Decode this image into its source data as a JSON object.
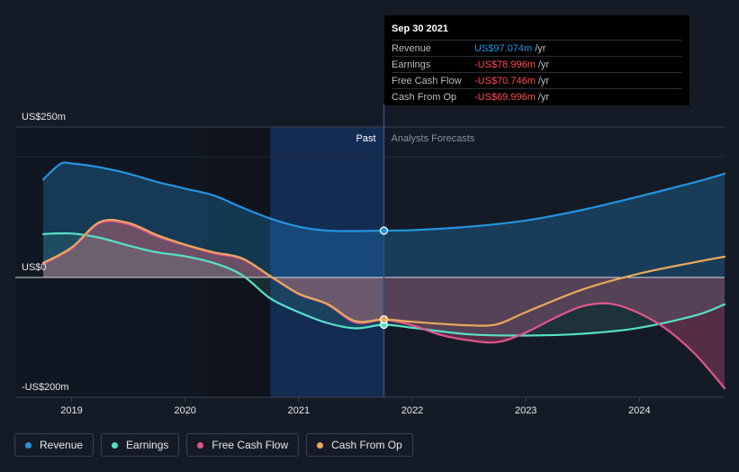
{
  "chart_data": {
    "type": "line",
    "y_axis": {
      "unit": "US$m",
      "ylim": [
        -200,
        250
      ],
      "tick_labels": [
        {
          "value": 250,
          "label": "US$250m"
        },
        {
          "value": 0,
          "label": "US$0"
        },
        {
          "value": -200,
          "label": "-US$200m"
        }
      ]
    },
    "x_axis": {
      "xlim": [
        2018.75,
        2024.75
      ],
      "ticks": [
        {
          "value": 2019,
          "label": "2019"
        },
        {
          "value": 2020,
          "label": "2020"
        },
        {
          "value": 2021,
          "label": "2021"
        },
        {
          "value": 2022,
          "label": "2022"
        },
        {
          "value": 2023,
          "label": "2023"
        },
        {
          "value": 2024,
          "label": "2024"
        }
      ]
    },
    "past_label": "Past",
    "forecast_label": "Analysts Forecasts",
    "divider_x": 2021.75,
    "highlight_band": [
      2020.75,
      2021.75
    ],
    "series": [
      {
        "name": "Revenue",
        "color": "#2394df",
        "fill": true,
        "points": [
          [
            2018.75,
            203
          ],
          [
            2018.9,
            235
          ],
          [
            2019.0,
            236
          ],
          [
            2019.25,
            228
          ],
          [
            2019.5,
            215
          ],
          [
            2019.75,
            198
          ],
          [
            2020.0,
            184
          ],
          [
            2020.25,
            170
          ],
          [
            2020.5,
            145
          ],
          [
            2020.75,
            122
          ],
          [
            2021.0,
            105
          ],
          [
            2021.25,
            97
          ],
          [
            2021.5,
            96
          ],
          [
            2021.75,
            97
          ]
        ],
        "forecast": [
          [
            2021.75,
            97
          ],
          [
            2022.0,
            98
          ],
          [
            2022.5,
            105
          ],
          [
            2023.0,
            118
          ],
          [
            2023.5,
            140
          ],
          [
            2024.0,
            168
          ],
          [
            2024.5,
            198
          ],
          [
            2024.75,
            215
          ]
        ]
      },
      {
        "name": "Earnings",
        "color": "#58e0c9",
        "fill": true,
        "points": [
          [
            2018.75,
            90
          ],
          [
            2019.0,
            91
          ],
          [
            2019.25,
            82
          ],
          [
            2019.5,
            66
          ],
          [
            2019.75,
            52
          ],
          [
            2020.0,
            44
          ],
          [
            2020.25,
            30
          ],
          [
            2020.5,
            5
          ],
          [
            2020.75,
            -35
          ],
          [
            2021.0,
            -58
          ],
          [
            2021.25,
            -76
          ],
          [
            2021.5,
            -85
          ],
          [
            2021.75,
            -79
          ]
        ],
        "forecast": [
          [
            2021.75,
            -79
          ],
          [
            2022.0,
            -84
          ],
          [
            2022.5,
            -95
          ],
          [
            2023.0,
            -97
          ],
          [
            2023.5,
            -94
          ],
          [
            2024.0,
            -84
          ],
          [
            2024.5,
            -63
          ],
          [
            2024.75,
            -45
          ]
        ]
      },
      {
        "name": "Free Cash Flow",
        "color": "#e0558e",
        "fill": false,
        "points": [
          [
            2018.75,
            28
          ],
          [
            2019.0,
            60
          ],
          [
            2019.25,
            113
          ],
          [
            2019.5,
            110
          ],
          [
            2019.75,
            85
          ],
          [
            2020.0,
            67
          ],
          [
            2020.25,
            50
          ],
          [
            2020.5,
            38
          ],
          [
            2020.75,
            2
          ],
          [
            2021.0,
            -28
          ],
          [
            2021.25,
            -45
          ],
          [
            2021.5,
            -75
          ],
          [
            2021.75,
            -71
          ]
        ],
        "forecast": [
          [
            2021.75,
            -71
          ],
          [
            2022.0,
            -80
          ],
          [
            2022.25,
            -96
          ],
          [
            2022.5,
            -105
          ],
          [
            2022.75,
            -108
          ],
          [
            2023.0,
            -92
          ],
          [
            2023.25,
            -68
          ],
          [
            2023.5,
            -48
          ],
          [
            2023.75,
            -44
          ],
          [
            2024.0,
            -60
          ],
          [
            2024.25,
            -88
          ],
          [
            2024.5,
            -130
          ],
          [
            2024.75,
            -185
          ]
        ]
      },
      {
        "name": "Cash From Op",
        "color": "#e9a85b",
        "fill": false,
        "points": [
          [
            2018.75,
            30
          ],
          [
            2019.0,
            62
          ],
          [
            2019.25,
            115
          ],
          [
            2019.5,
            113
          ],
          [
            2019.75,
            88
          ],
          [
            2020.0,
            68
          ],
          [
            2020.25,
            52
          ],
          [
            2020.5,
            40
          ],
          [
            2020.75,
            3
          ],
          [
            2021.0,
            -27
          ],
          [
            2021.25,
            -44
          ],
          [
            2021.5,
            -73
          ],
          [
            2021.75,
            -70
          ]
        ],
        "forecast": [
          [
            2021.75,
            -70
          ],
          [
            2022.0,
            -74
          ],
          [
            2022.5,
            -80
          ],
          [
            2022.75,
            -78
          ],
          [
            2023.0,
            -58
          ],
          [
            2023.5,
            -20
          ],
          [
            2024.0,
            8
          ],
          [
            2024.5,
            32
          ],
          [
            2024.75,
            43
          ]
        ]
      }
    ]
  },
  "tooltip": {
    "date": "Sep 30 2021",
    "rows": [
      {
        "label": "Revenue",
        "value": "US$97.074m",
        "unit": "/yr",
        "color": "#2394df"
      },
      {
        "label": "Earnings",
        "value": "-US$78.996m",
        "unit": "/yr",
        "color": "#ff4d4f"
      },
      {
        "label": "Free Cash Flow",
        "value": "-US$70.746m",
        "unit": "/yr",
        "color": "#ff4d4f"
      },
      {
        "label": "Cash From Op",
        "value": "-US$69.996m",
        "unit": "/yr",
        "color": "#ff4d4f"
      }
    ]
  },
  "legend": {
    "items": [
      {
        "label": "Revenue",
        "color": "#2394df"
      },
      {
        "label": "Earnings",
        "color": "#58e0c9"
      },
      {
        "label": "Free Cash Flow",
        "color": "#e0558e"
      },
      {
        "label": "Cash From Op",
        "color": "#e9a85b"
      }
    ]
  }
}
